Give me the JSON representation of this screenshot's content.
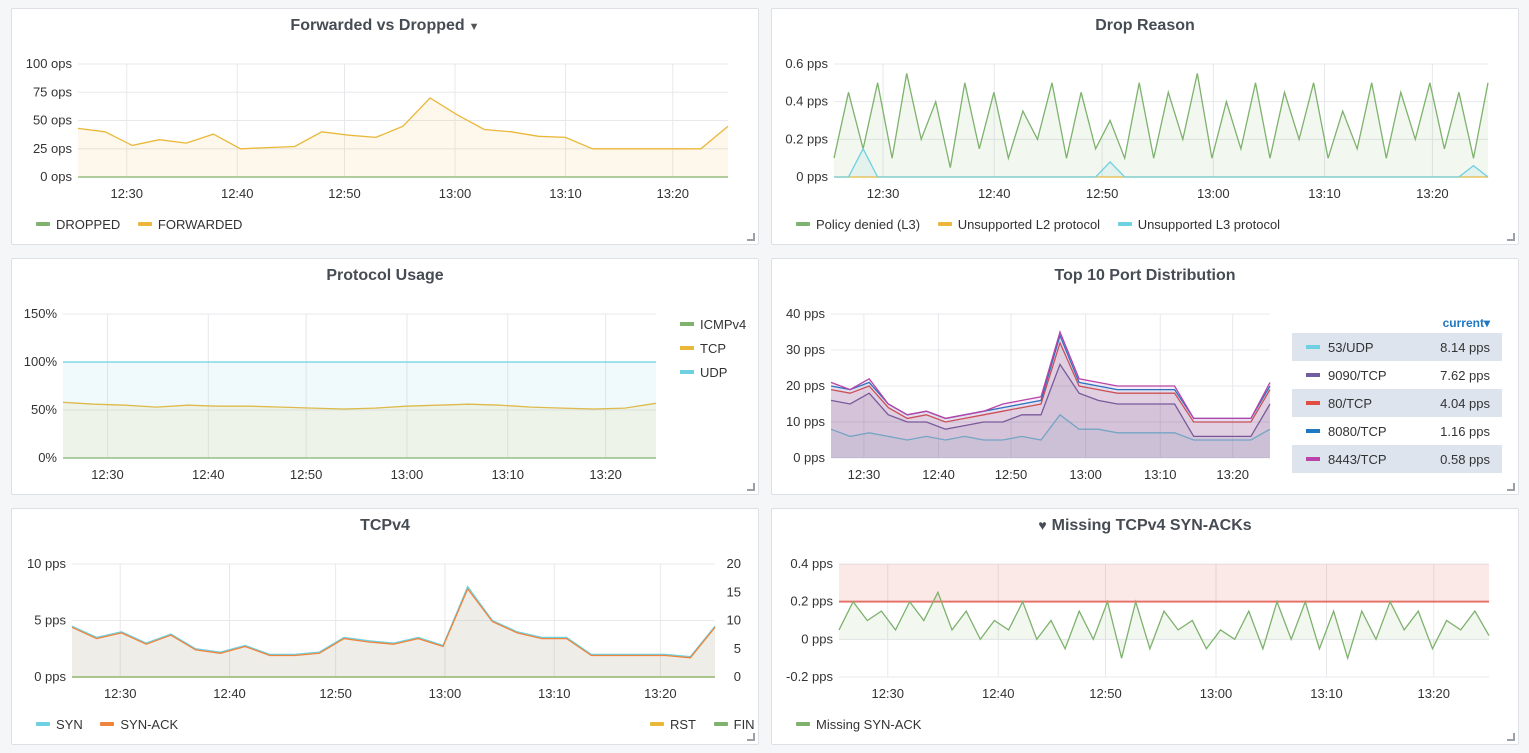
{
  "colors": {
    "green": "#7eb26d",
    "yellow": "#eab839",
    "blue": "#6ed0e0",
    "orange": "#ef843c",
    "red": "#e24d42",
    "darkblue": "#1f78c1",
    "purple": "#705da0",
    "pink": "#ba43a9"
  },
  "panels": {
    "forwarded": {
      "title": "Forwarded vs Dropped",
      "legend": [
        "DROPPED",
        "FORWARDED"
      ]
    },
    "drop_reason": {
      "title": "Drop Reason",
      "legend": [
        "Policy denied (L3)",
        "Unsupported L2 protocol",
        "Unsupported L3 protocol"
      ]
    },
    "protocol": {
      "title": "Protocol Usage",
      "legend": [
        "ICMPv4",
        "TCP",
        "UDP"
      ]
    },
    "ports": {
      "title": "Top 10 Port Distribution",
      "current_label": "current▾",
      "rows": [
        {
          "name": "53/UDP",
          "value": "8.14 pps"
        },
        {
          "name": "9090/TCP",
          "value": "7.62 pps"
        },
        {
          "name": "80/TCP",
          "value": "4.04 pps"
        },
        {
          "name": "8080/TCP",
          "value": "1.16 pps"
        },
        {
          "name": "8443/TCP",
          "value": "0.58 pps"
        }
      ]
    },
    "tcpv4": {
      "title": "TCPv4",
      "legend_left": [
        "SYN",
        "SYN-ACK"
      ],
      "legend_right": [
        "RST",
        "FIN"
      ]
    },
    "synack": {
      "title": "Missing TCPv4 SYN-ACKs",
      "legend": [
        "Missing SYN-ACK"
      ]
    }
  },
  "chart_data": [
    {
      "id": "forwarded",
      "type": "area",
      "title": "Forwarded vs Dropped",
      "x": [
        "12:24",
        "12:27",
        "12:30",
        "12:33",
        "12:36",
        "12:39",
        "12:42",
        "12:45",
        "12:48",
        "12:51",
        "12:54",
        "12:57",
        "12:58",
        "12:59",
        "13:00",
        "13:01",
        "13:03",
        "13:06",
        "13:09",
        "13:12",
        "13:15",
        "13:18",
        "13:21",
        "13:23",
        "13:25"
      ],
      "x_ticks": [
        "12:30",
        "12:40",
        "12:50",
        "13:00",
        "13:10",
        "13:20"
      ],
      "y_ticks": [
        "0 ops",
        "25 ops",
        "50 ops",
        "75 ops",
        "100 ops"
      ],
      "ylim": [
        0,
        100
      ],
      "series": [
        {
          "name": "DROPPED",
          "color": "#7eb26d",
          "values": [
            0,
            0,
            0,
            0,
            0,
            0,
            0,
            0,
            0,
            0,
            0,
            0,
            0,
            0,
            0,
            0,
            0,
            0,
            0,
            0,
            0,
            0,
            0,
            0,
            0
          ]
        },
        {
          "name": "FORWARDED",
          "color": "#eab839",
          "values": [
            43,
            40,
            28,
            33,
            30,
            38,
            25,
            26,
            27,
            40,
            37,
            35,
            45,
            70,
            55,
            42,
            40,
            36,
            35,
            25,
            25,
            25,
            25,
            25,
            45
          ]
        }
      ]
    },
    {
      "id": "drop_reason",
      "type": "line",
      "title": "Drop Reason",
      "x_ticks": [
        "12:30",
        "12:40",
        "12:50",
        "13:00",
        "13:10",
        "13:20"
      ],
      "y_ticks": [
        "0 pps",
        "0.2 pps",
        "0.4 pps",
        "0.6 pps"
      ],
      "ylim": [
        0,
        0.6
      ],
      "series": [
        {
          "name": "Policy denied (L3)",
          "color": "#7eb26d",
          "values": [
            0.1,
            0.45,
            0.15,
            0.5,
            0.1,
            0.55,
            0.2,
            0.4,
            0.05,
            0.5,
            0.15,
            0.45,
            0.1,
            0.35,
            0.2,
            0.5,
            0.1,
            0.45,
            0.15,
            0.3,
            0.1,
            0.5,
            0.1,
            0.45,
            0.2,
            0.55,
            0.1,
            0.4,
            0.15,
            0.5,
            0.1,
            0.45,
            0.2,
            0.5,
            0.1,
            0.35,
            0.15,
            0.5,
            0.1,
            0.45,
            0.2,
            0.5,
            0.15,
            0.45,
            0.1,
            0.5
          ]
        },
        {
          "name": "Unsupported L2 protocol",
          "color": "#eab839",
          "values": [
            0,
            0,
            0,
            0,
            0,
            0,
            0,
            0,
            0,
            0,
            0,
            0,
            0,
            0,
            0,
            0,
            0,
            0,
            0,
            0,
            0,
            0,
            0,
            0,
            0,
            0,
            0,
            0,
            0,
            0,
            0,
            0,
            0,
            0,
            0,
            0,
            0,
            0,
            0,
            0,
            0,
            0,
            0,
            0,
            0,
            0
          ]
        },
        {
          "name": "Unsupported L3 protocol",
          "color": "#6ed0e0",
          "values": [
            0,
            0,
            0.15,
            0,
            0,
            0,
            0,
            0,
            0,
            0,
            0,
            0,
            0,
            0,
            0,
            0,
            0,
            0,
            0,
            0.08,
            0,
            0,
            0,
            0,
            0,
            0,
            0,
            0,
            0,
            0,
            0,
            0,
            0,
            0,
            0,
            0,
            0,
            0,
            0,
            0,
            0,
            0,
            0,
            0,
            0.06,
            0
          ]
        }
      ]
    },
    {
      "id": "protocol",
      "type": "area",
      "title": "Protocol Usage",
      "x_ticks": [
        "12:30",
        "12:40",
        "12:50",
        "13:00",
        "13:10",
        "13:20"
      ],
      "y_ticks": [
        "0%",
        "50%",
        "100%",
        "150%"
      ],
      "ylim": [
        0,
        150
      ],
      "series": [
        {
          "name": "ICMPv4",
          "color": "#7eb26d",
          "values": [
            0,
            0,
            0,
            0,
            0,
            0,
            0,
            0,
            0,
            0,
            0,
            0,
            0,
            0,
            0,
            0,
            0,
            0,
            0,
            0
          ]
        },
        {
          "name": "TCP",
          "color": "#eab839",
          "values": [
            58,
            56,
            55,
            53,
            55,
            54,
            54,
            53,
            52,
            51,
            52,
            54,
            55,
            56,
            55,
            53,
            52,
            51,
            52,
            57
          ]
        },
        {
          "name": "UDP",
          "color": "#6ed0e0",
          "values": [
            100,
            100,
            100,
            100,
            100,
            100,
            100,
            100,
            100,
            100,
            100,
            100,
            100,
            100,
            100,
            100,
            100,
            100,
            100,
            100
          ]
        }
      ]
    },
    {
      "id": "ports",
      "type": "area",
      "title": "Top 10 Port Distribution",
      "x_ticks": [
        "12:30",
        "12:40",
        "12:50",
        "13:00",
        "13:10",
        "13:20"
      ],
      "y_ticks": [
        "0 pps",
        "10 pps",
        "20 pps",
        "30 pps",
        "40 pps"
      ],
      "ylim": [
        0,
        40
      ],
      "series": [
        {
          "name": "53/UDP",
          "color": "#6ed0e0",
          "values": [
            8,
            6,
            7,
            6,
            5,
            6,
            5,
            6,
            5,
            5,
            6,
            5,
            12,
            8,
            8,
            7,
            7,
            7,
            7,
            5,
            5,
            5,
            5,
            8
          ]
        },
        {
          "name": "9090/TCP",
          "color": "#705da0",
          "values": [
            16,
            15,
            18,
            12,
            10,
            10,
            8,
            9,
            10,
            10,
            12,
            12,
            26,
            18,
            16,
            15,
            15,
            15,
            15,
            6,
            6,
            6,
            6,
            15
          ]
        },
        {
          "name": "80/TCP",
          "color": "#e24d42",
          "values": [
            19,
            18,
            20,
            14,
            11,
            12,
            10,
            11,
            12,
            13,
            14,
            15,
            32,
            20,
            19,
            18,
            18,
            18,
            18,
            10,
            10,
            10,
            10,
            19
          ]
        },
        {
          "name": "8080/TCP",
          "color": "#1f78c1",
          "values": [
            20,
            19,
            21,
            15,
            12,
            13,
            11,
            12,
            13,
            14,
            15,
            16,
            34,
            21,
            20,
            19,
            19,
            19,
            19,
            11,
            11,
            11,
            11,
            20
          ]
        },
        {
          "name": "8443/TCP",
          "color": "#ba43a9",
          "values": [
            21,
            19,
            22,
            15,
            12,
            13,
            11,
            12,
            13,
            15,
            16,
            17,
            35,
            22,
            21,
            20,
            20,
            20,
            20,
            11,
            11,
            11,
            11,
            21
          ]
        }
      ]
    },
    {
      "id": "tcpv4",
      "type": "area",
      "title": "TCPv4",
      "x_ticks": [
        "12:30",
        "12:40",
        "12:50",
        "13:00",
        "13:10",
        "13:20"
      ],
      "y_ticks": [
        "0 pps",
        "5 pps",
        "10 pps"
      ],
      "ylim": [
        0,
        10
      ],
      "y2_ticks": [
        "0",
        "5",
        "10",
        "15",
        "20"
      ],
      "y2lim": [
        0,
        20
      ],
      "series": [
        {
          "name": "SYN",
          "color": "#6ed0e0",
          "values": [
            4.5,
            3.5,
            4,
            3,
            3.8,
            2.5,
            2.2,
            2.8,
            2,
            2,
            2.2,
            3.5,
            3.2,
            3,
            3.5,
            2.8,
            8,
            5,
            4,
            3.5,
            3.5,
            2,
            2,
            2,
            2,
            1.8,
            4.5
          ]
        },
        {
          "name": "SYN-ACK",
          "color": "#ef843c",
          "values": [
            4.4,
            3.4,
            3.9,
            2.9,
            3.7,
            2.4,
            2.1,
            2.7,
            1.9,
            1.9,
            2.1,
            3.4,
            3.1,
            2.9,
            3.4,
            2.7,
            7.8,
            4.9,
            3.9,
            3.4,
            3.4,
            1.9,
            1.9,
            1.9,
            1.9,
            1.7,
            4.4
          ]
        },
        {
          "name": "RST",
          "color": "#eab839",
          "values": [
            0,
            0,
            0,
            0,
            0,
            0,
            0,
            0,
            0,
            0,
            0,
            0,
            0,
            0,
            0,
            0,
            0,
            0,
            0,
            0,
            0,
            0,
            0,
            0,
            0,
            0,
            0
          ]
        },
        {
          "name": "FIN",
          "color": "#7eb26d",
          "values": [
            0,
            0,
            0,
            0,
            0,
            0,
            0,
            0,
            0,
            0,
            0,
            0,
            0,
            0,
            0,
            0,
            0,
            0,
            0,
            0,
            0,
            0,
            0,
            0,
            0,
            0,
            0
          ]
        }
      ]
    },
    {
      "id": "synack",
      "type": "line",
      "title": "Missing TCPv4 SYN-ACKs",
      "x_ticks": [
        "12:30",
        "12:40",
        "12:50",
        "13:00",
        "13:10",
        "13:20"
      ],
      "y_ticks": [
        "-0.2 pps",
        "0 pps",
        "0.2 pps",
        "0.4 pps"
      ],
      "ylim": [
        -0.2,
        0.4
      ],
      "threshold": 0.2,
      "series": [
        {
          "name": "Missing SYN-ACK",
          "color": "#7eb26d",
          "values": [
            0.05,
            0.2,
            0.1,
            0.15,
            0.05,
            0.2,
            0.1,
            0.25,
            0.05,
            0.15,
            0.0,
            0.1,
            0.05,
            0.2,
            0.0,
            0.1,
            -0.05,
            0.15,
            0.0,
            0.2,
            -0.1,
            0.2,
            -0.05,
            0.15,
            0.05,
            0.1,
            -0.05,
            0.05,
            0.0,
            0.15,
            -0.05,
            0.2,
            0.0,
            0.2,
            -0.05,
            0.15,
            -0.1,
            0.15,
            0.0,
            0.2,
            0.05,
            0.15,
            -0.05,
            0.1,
            0.05,
            0.15,
            0.02
          ]
        }
      ]
    }
  ]
}
